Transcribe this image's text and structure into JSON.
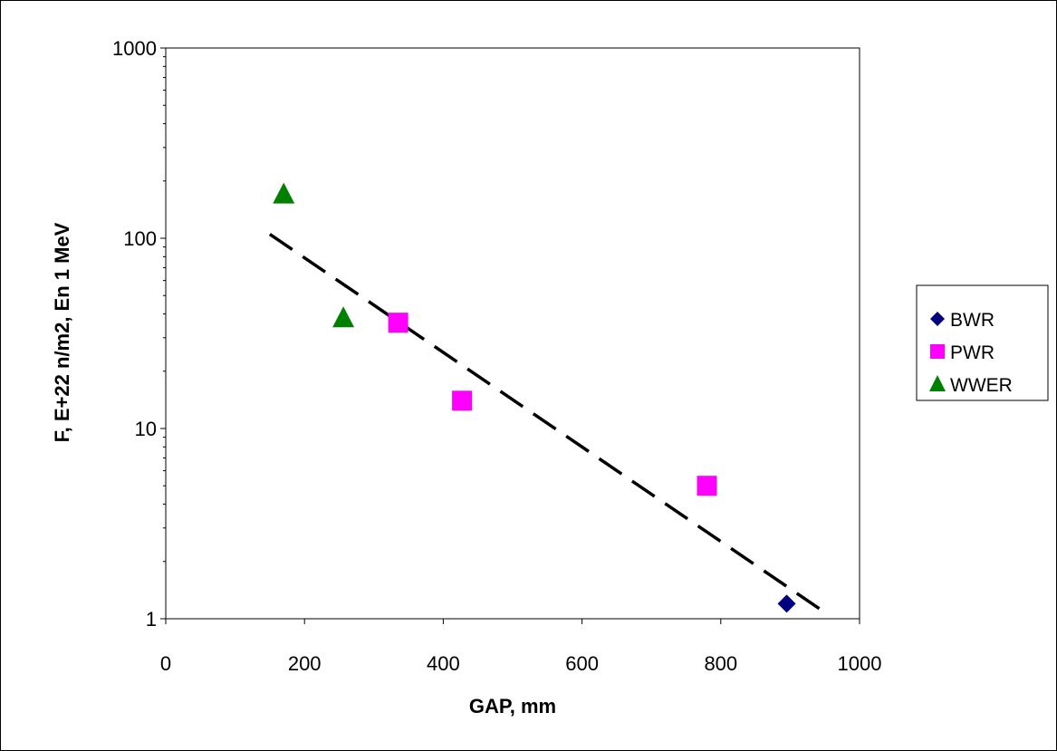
{
  "chart_data": {
    "type": "scatter",
    "title": "",
    "xlabel": "GAP, mm",
    "ylabel": "F, E+22 n/m2, En 1 MeV",
    "xlim": [
      0,
      1000
    ],
    "ylim": [
      1,
      1000
    ],
    "yscale": "log",
    "x_ticks": [
      0,
      200,
      400,
      600,
      800,
      1000
    ],
    "y_ticks": [
      1,
      10,
      100,
      1000
    ],
    "grid": false,
    "legend_position": "right",
    "series": [
      {
        "name": "BWR",
        "marker": "diamond",
        "color": "#000080",
        "points": [
          [
            895,
            1.2
          ]
        ]
      },
      {
        "name": "PWR",
        "marker": "square",
        "color": "#ff00ff",
        "points": [
          [
            335,
            36
          ],
          [
            427,
            14
          ],
          [
            780,
            5
          ]
        ]
      },
      {
        "name": "WWER",
        "marker": "triangle",
        "color": "#008000",
        "points": [
          [
            170,
            170
          ],
          [
            256,
            38
          ]
        ]
      }
    ],
    "trendline": {
      "style": "dashed",
      "color": "#000000",
      "points": [
        [
          150,
          105
        ],
        [
          950,
          1.08
        ]
      ]
    }
  }
}
